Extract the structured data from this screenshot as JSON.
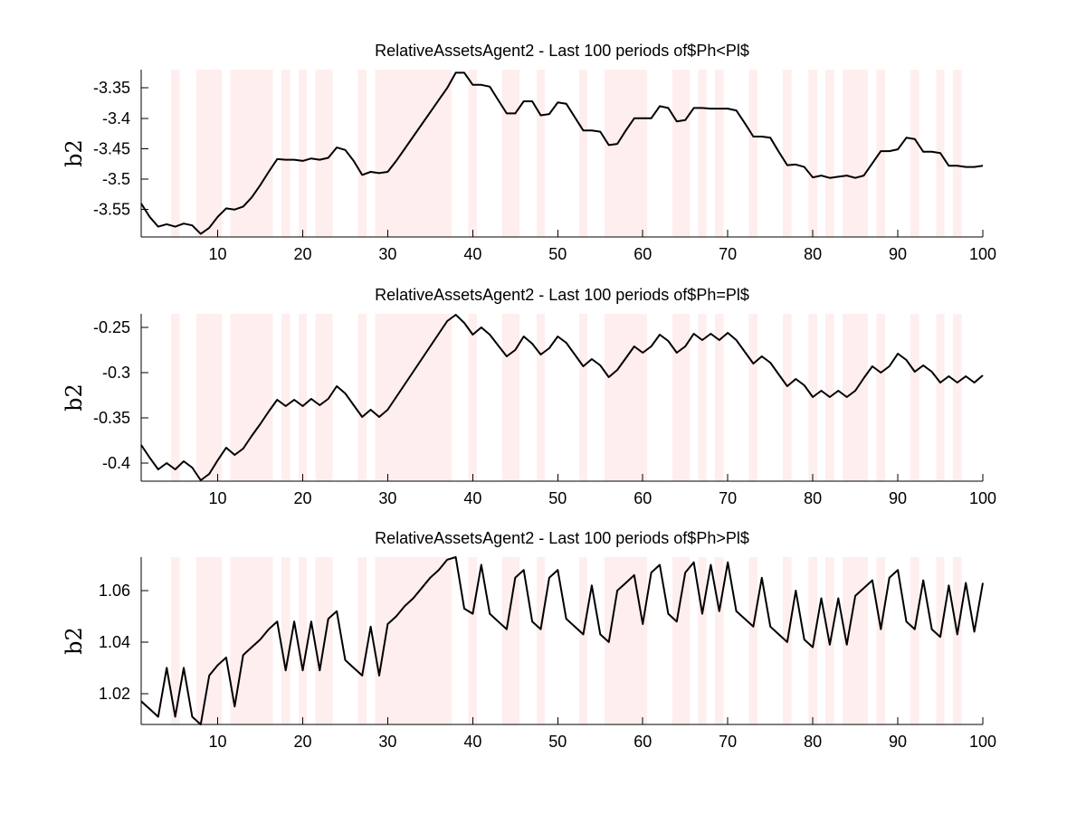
{
  "chart_data": [
    {
      "type": "line",
      "title": "RelativeAssetsAgent2 - Last 100 periods of$Ph<Pl$",
      "xlabel": "",
      "ylabel": "b2",
      "xlim": [
        1,
        100
      ],
      "ylim": [
        -3.595,
        -3.32
      ],
      "xticks": [
        10,
        20,
        30,
        40,
        50,
        60,
        70,
        80,
        90,
        100
      ],
      "yticks": [
        -3.55,
        -3.5,
        -3.45,
        -3.4,
        -3.35
      ],
      "ytick_labels": [
        "-3.55",
        "-3.5",
        "-3.45",
        "-3.4",
        "-3.35"
      ],
      "grid": false,
      "shaded_x": [
        5,
        8,
        9,
        10,
        12,
        13,
        14,
        15,
        16,
        18,
        20,
        22,
        23,
        27,
        29,
        30,
        31,
        32,
        33,
        34,
        35,
        36,
        37,
        40,
        44,
        45,
        48,
        53,
        56,
        57,
        58,
        59,
        60,
        64,
        65,
        67,
        69,
        73,
        77,
        80,
        82,
        84,
        85,
        86,
        88,
        92,
        95,
        97
      ],
      "series": [
        {
          "x": [
            1,
            2,
            3,
            4,
            5,
            6,
            7,
            8,
            9,
            10,
            11,
            12,
            13,
            14,
            15,
            16,
            17,
            18,
            19,
            20,
            21,
            22,
            23,
            24,
            25,
            26,
            27,
            28,
            29,
            30,
            31,
            32,
            33,
            34,
            35,
            36,
            37,
            38,
            39,
            40,
            41,
            42,
            43,
            44,
            45,
            46,
            47,
            48,
            49,
            50,
            51,
            52,
            53,
            54,
            55,
            56,
            57,
            58,
            59,
            60,
            61,
            62,
            63,
            64,
            65,
            66,
            67,
            68,
            69,
            70,
            71,
            72,
            73,
            74,
            75,
            76,
            77,
            78,
            79,
            80,
            81,
            82,
            83,
            84,
            85,
            86,
            87,
            88,
            89,
            90,
            91,
            92,
            93,
            94,
            95,
            96,
            97,
            98,
            99,
            100
          ],
          "y": [
            -3.54,
            -3.562,
            -3.578,
            -3.574,
            -3.578,
            -3.573,
            -3.576,
            -3.59,
            -3.58,
            -3.562,
            -3.548,
            -3.55,
            -3.545,
            -3.53,
            -3.51,
            -3.488,
            -3.467,
            -3.468,
            -3.468,
            -3.47,
            -3.466,
            -3.468,
            -3.465,
            -3.448,
            -3.452,
            -3.47,
            -3.493,
            -3.488,
            -3.49,
            -3.488,
            -3.47,
            -3.45,
            -3.43,
            -3.41,
            -3.39,
            -3.37,
            -3.35,
            -3.325,
            -3.325,
            -3.345,
            -3.345,
            -3.348,
            -3.37,
            -3.392,
            -3.392,
            -3.372,
            -3.372,
            -3.395,
            -3.393,
            -3.374,
            -3.376,
            -3.398,
            -3.42,
            -3.42,
            -3.422,
            -3.444,
            -3.442,
            -3.42,
            -3.4,
            -3.4,
            -3.4,
            -3.38,
            -3.383,
            -3.405,
            -3.403,
            -3.383,
            -3.383,
            -3.384,
            -3.384,
            -3.384,
            -3.387,
            -3.408,
            -3.43,
            -3.43,
            -3.432,
            -3.455,
            -3.477,
            -3.476,
            -3.48,
            -3.497,
            -3.494,
            -3.498,
            -3.496,
            -3.494,
            -3.498,
            -3.494,
            -3.474,
            -3.454,
            -3.454,
            -3.451,
            -3.432,
            -3.434,
            -3.455,
            -3.455,
            -3.457,
            -3.478,
            -3.478,
            -3.48,
            -3.48,
            -3.478
          ]
        }
      ]
    },
    {
      "type": "line",
      "title": "RelativeAssetsAgent2 - Last 100 periods of$Ph=Pl$",
      "xlabel": "",
      "ylabel": "b2",
      "xlim": [
        1,
        100
      ],
      "ylim": [
        -0.42,
        -0.235
      ],
      "xticks": [
        10,
        20,
        30,
        40,
        50,
        60,
        70,
        80,
        90,
        100
      ],
      "yticks": [
        -0.4,
        -0.35,
        -0.3,
        -0.25
      ],
      "ytick_labels": [
        "-0.4",
        "-0.35",
        "-0.3",
        "-0.25"
      ],
      "grid": false,
      "shaded_x": [
        5,
        8,
        9,
        10,
        12,
        13,
        14,
        15,
        16,
        18,
        20,
        22,
        23,
        27,
        29,
        30,
        31,
        32,
        33,
        34,
        35,
        36,
        37,
        40,
        44,
        45,
        48,
        53,
        56,
        57,
        58,
        59,
        60,
        64,
        65,
        67,
        69,
        73,
        77,
        80,
        82,
        84,
        85,
        86,
        88,
        92,
        95,
        97
      ],
      "series": [
        {
          "x": [
            1,
            2,
            3,
            4,
            5,
            6,
            7,
            8,
            9,
            10,
            11,
            12,
            13,
            14,
            15,
            16,
            17,
            18,
            19,
            20,
            21,
            22,
            23,
            24,
            25,
            26,
            27,
            28,
            29,
            30,
            31,
            32,
            33,
            34,
            35,
            36,
            37,
            38,
            39,
            40,
            41,
            42,
            43,
            44,
            45,
            46,
            47,
            48,
            49,
            50,
            51,
            52,
            53,
            54,
            55,
            56,
            57,
            58,
            59,
            60,
            61,
            62,
            63,
            64,
            65,
            66,
            67,
            68,
            69,
            70,
            71,
            72,
            73,
            74,
            75,
            76,
            77,
            78,
            79,
            80,
            81,
            82,
            83,
            84,
            85,
            86,
            87,
            88,
            89,
            90,
            91,
            92,
            93,
            94,
            95,
            96,
            97,
            98,
            99,
            100
          ],
          "y": [
            -0.38,
            -0.394,
            -0.407,
            -0.4,
            -0.407,
            -0.398,
            -0.405,
            -0.419,
            -0.412,
            -0.397,
            -0.383,
            -0.391,
            -0.384,
            -0.37,
            -0.357,
            -0.343,
            -0.33,
            -0.337,
            -0.33,
            -0.337,
            -0.329,
            -0.336,
            -0.329,
            -0.315,
            -0.323,
            -0.336,
            -0.349,
            -0.341,
            -0.349,
            -0.341,
            -0.327,
            -0.313,
            -0.299,
            -0.285,
            -0.271,
            -0.257,
            -0.243,
            -0.236,
            -0.245,
            -0.258,
            -0.25,
            -0.258,
            -0.27,
            -0.282,
            -0.275,
            -0.26,
            -0.268,
            -0.28,
            -0.273,
            -0.26,
            -0.267,
            -0.28,
            -0.293,
            -0.285,
            -0.292,
            -0.305,
            -0.297,
            -0.284,
            -0.271,
            -0.278,
            -0.271,
            -0.258,
            -0.265,
            -0.278,
            -0.271,
            -0.257,
            -0.264,
            -0.257,
            -0.264,
            -0.256,
            -0.264,
            -0.277,
            -0.29,
            -0.282,
            -0.289,
            -0.302,
            -0.315,
            -0.307,
            -0.314,
            -0.327,
            -0.32,
            -0.327,
            -0.32,
            -0.327,
            -0.32,
            -0.306,
            -0.293,
            -0.3,
            -0.293,
            -0.279,
            -0.286,
            -0.299,
            -0.292,
            -0.299,
            -0.311,
            -0.304,
            -0.311,
            -0.304,
            -0.311,
            -0.303
          ]
        }
      ]
    },
    {
      "type": "line",
      "title": "RelativeAssetsAgent2 - Last 100 periods of$Ph>Pl$",
      "xlabel": "",
      "ylabel": "b2",
      "xlim": [
        1,
        100
      ],
      "ylim": [
        1.008,
        1.073
      ],
      "xticks": [
        10,
        20,
        30,
        40,
        50,
        60,
        70,
        80,
        90,
        100
      ],
      "yticks": [
        1.02,
        1.04,
        1.06
      ],
      "ytick_labels": [
        "1.02",
        "1.04",
        "1.06"
      ],
      "grid": false,
      "shaded_x": [
        5,
        8,
        9,
        10,
        12,
        13,
        14,
        15,
        16,
        18,
        20,
        22,
        23,
        27,
        29,
        30,
        31,
        32,
        33,
        34,
        35,
        36,
        37,
        40,
        44,
        45,
        48,
        53,
        56,
        57,
        58,
        59,
        60,
        64,
        65,
        67,
        69,
        73,
        77,
        80,
        82,
        84,
        85,
        86,
        88,
        92,
        95,
        97
      ],
      "series": [
        {
          "x": [
            1,
            2,
            3,
            4,
            5,
            6,
            7,
            8,
            9,
            10,
            11,
            12,
            13,
            14,
            15,
            16,
            17,
            18,
            19,
            20,
            21,
            22,
            23,
            24,
            25,
            26,
            27,
            28,
            29,
            30,
            31,
            32,
            33,
            34,
            35,
            36,
            37,
            38,
            39,
            40,
            41,
            42,
            43,
            44,
            45,
            46,
            47,
            48,
            49,
            50,
            51,
            52,
            53,
            54,
            55,
            56,
            57,
            58,
            59,
            60,
            61,
            62,
            63,
            64,
            65,
            66,
            67,
            68,
            69,
            70,
            71,
            72,
            73,
            74,
            75,
            76,
            77,
            78,
            79,
            80,
            81,
            82,
            83,
            84,
            85,
            86,
            87,
            88,
            89,
            90,
            91,
            92,
            93,
            94,
            95,
            96,
            97,
            98,
            99,
            100
          ],
          "y": [
            1.017,
            1.014,
            1.011,
            1.03,
            1.011,
            1.03,
            1.011,
            1.008,
            1.027,
            1.031,
            1.034,
            1.015,
            1.035,
            1.038,
            1.041,
            1.045,
            1.048,
            1.029,
            1.048,
            1.029,
            1.048,
            1.029,
            1.049,
            1.052,
            1.033,
            1.03,
            1.027,
            1.046,
            1.027,
            1.047,
            1.05,
            1.054,
            1.057,
            1.061,
            1.065,
            1.068,
            1.072,
            1.073,
            1.053,
            1.051,
            1.07,
            1.051,
            1.048,
            1.045,
            1.065,
            1.068,
            1.048,
            1.045,
            1.065,
            1.068,
            1.049,
            1.046,
            1.043,
            1.062,
            1.043,
            1.04,
            1.06,
            1.063,
            1.066,
            1.047,
            1.067,
            1.07,
            1.051,
            1.048,
            1.067,
            1.071,
            1.051,
            1.07,
            1.052,
            1.071,
            1.052,
            1.049,
            1.046,
            1.065,
            1.046,
            1.043,
            1.04,
            1.06,
            1.041,
            1.038,
            1.057,
            1.039,
            1.057,
            1.039,
            1.058,
            1.061,
            1.064,
            1.045,
            1.065,
            1.068,
            1.048,
            1.045,
            1.064,
            1.045,
            1.042,
            1.062,
            1.043,
            1.063,
            1.044,
            1.063
          ]
        }
      ]
    }
  ]
}
